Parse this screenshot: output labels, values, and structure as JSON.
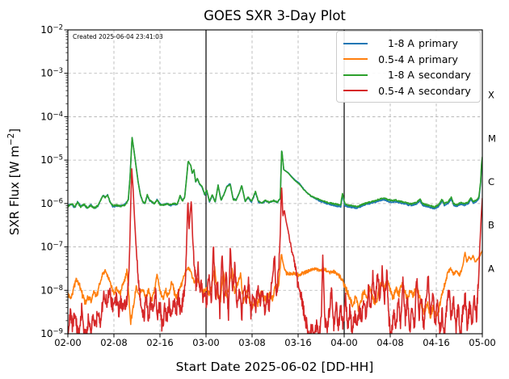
{
  "chart_data": {
    "type": "line",
    "title": "GOES SXR 3-Day Plot",
    "xlabel": "Start Date 2025-06-02 [DD-HH]",
    "ylabel_main": "SXR Flux [W m",
    "ylabel_sup": "−2",
    "ylabel_end": "]",
    "created_note": "Created 2025-06-04 23:41:03",
    "x_axis": {
      "unit": "hours since 2025-06-02 00:00",
      "range_hours": [
        0,
        72
      ],
      "tick_hours": [
        0,
        8,
        16,
        24,
        32,
        40,
        48,
        56,
        64,
        72
      ],
      "tick_labels": [
        "02-00",
        "02-08",
        "02-16",
        "03-00",
        "03-08",
        "03-16",
        "04-00",
        "04-08",
        "04-16",
        "05-00"
      ]
    },
    "y_axis": {
      "scale": "log10",
      "unit": "W m^-2",
      "range_log10": [
        -9,
        -2
      ],
      "tick_exponents": [
        -2,
        -3,
        -4,
        -5,
        -6,
        -7,
        -8,
        -9
      ]
    },
    "grid": {
      "on": true,
      "style": "dashed",
      "color": "#b0b0b0"
    },
    "day_boundary_hours": [
      24,
      48
    ],
    "flux_classes": [
      {
        "label": "X",
        "log10_center": -3.5
      },
      {
        "label": "M",
        "log10_center": -4.5
      },
      {
        "label": "C",
        "log10_center": -5.5
      },
      {
        "label": "B",
        "log10_center": -6.5
      },
      {
        "label": "A",
        "log10_center": -7.5
      }
    ],
    "legend": {
      "position": "upper right",
      "items": [
        {
          "channel": "1-8 A",
          "kind": "primary",
          "color": "#1f77b4"
        },
        {
          "channel": "0.5-4 A",
          "kind": "primary",
          "color": "#ff7f0e"
        },
        {
          "channel": "1-8 A",
          "kind": "secondary",
          "color": "#2ca02c"
        },
        {
          "channel": "0.5-4 A",
          "kind": "secondary",
          "color": "#d62728"
        }
      ]
    },
    "series": [
      {
        "name": "1-8 A primary",
        "color": "#1f77b4",
        "noise": {
          "amp": 0.05,
          "ceil": -5.3
        },
        "offsets_from_secondary": [
          0,
          0.03,
          1,
          -0.03,
          2,
          0.03,
          3,
          -0.02,
          4,
          0.02,
          5,
          -0.02,
          6,
          0.01,
          8,
          -0.02,
          10,
          0.02,
          11.15,
          0,
          12,
          0.01,
          14,
          -0.02,
          16,
          0.02,
          18,
          -0.02,
          20,
          0.01,
          21,
          0,
          24,
          -0.02,
          28,
          0.02,
          32,
          -0.02,
          37.15,
          0,
          40,
          0.02,
          44,
          -0.03,
          48,
          -0.04,
          52,
          -0.03,
          56,
          -0.04,
          60,
          -0.03,
          64,
          -0.04,
          68,
          -0.03,
          72,
          -0.04
        ]
      },
      {
        "name": "0.5-4 A primary",
        "color": "#ff7f0e",
        "noise": {
          "amp": 0.15,
          "ceil": -7.0
        },
        "anchors_t_log10flux": [
          0,
          -8.1,
          0.5,
          -8.25,
          1,
          -7.95,
          1.5,
          -7.75,
          2,
          -7.85,
          2.5,
          -8.1,
          3,
          -8.3,
          3.5,
          -8.15,
          4,
          -8.25,
          4.5,
          -8.05,
          5,
          -8.15,
          5.5,
          -7.85,
          6,
          -7.65,
          6.5,
          -7.55,
          7,
          -7.7,
          7.5,
          -7.9,
          8,
          -8.05,
          8.5,
          -7.95,
          9,
          -8.1,
          9.5,
          -7.9,
          10,
          -7.7,
          10.3,
          -7.52,
          10.9,
          -8.75,
          11.3,
          -8.45,
          11.9,
          -7.9,
          12.4,
          -8.1,
          13,
          -7.95,
          13.5,
          -8.2,
          14,
          -8.0,
          14.5,
          -8.25,
          15,
          -8.05,
          15.5,
          -7.62,
          16,
          -8.0,
          16.5,
          -8.2,
          17,
          -8.0,
          17.5,
          -8.15,
          18,
          -7.78,
          18.5,
          -8.05,
          19,
          -8.15,
          19.5,
          -7.95,
          20,
          -7.75,
          20.5,
          -7.55,
          21,
          -7.48,
          21.5,
          -7.65,
          22,
          -7.82,
          22.5,
          -7.75,
          23,
          -7.92,
          23.5,
          -8.05,
          24,
          -7.95,
          24.5,
          -8.1,
          25,
          -7.9,
          25.5,
          -7.48,
          26,
          -8.1,
          26.5,
          -8.25,
          27,
          -7.55,
          27.5,
          -8.2,
          28,
          -7.9,
          28.5,
          -7.5,
          29,
          -8.05,
          29.5,
          -7.85,
          30,
          -7.62,
          30.5,
          -8.3,
          31,
          -8.0,
          31.5,
          -8.2,
          32,
          -8.42,
          32.5,
          -8.2,
          33,
          -8.3,
          33.5,
          -8.05,
          34,
          -8.1,
          34.5,
          -8.25,
          35,
          -8.1,
          35.5,
          -8.2,
          36,
          -7.95,
          36.6,
          -7.9,
          37.1,
          -7.15,
          37.5,
          -7.45,
          38,
          -7.62,
          39,
          -7.6,
          40,
          -7.65,
          41,
          -7.6,
          42,
          -7.55,
          43,
          -7.5,
          43.5,
          -7.53,
          44,
          -7.56,
          44.5,
          -7.5,
          45,
          -7.55,
          45.5,
          -7.6,
          46,
          -7.55,
          46.5,
          -7.6,
          47,
          -7.65,
          47.5,
          -7.72,
          48,
          -7.88,
          48.6,
          -8.05,
          49,
          -8.2,
          49.5,
          -8.35,
          50,
          -8.15,
          50.5,
          -8.45,
          51,
          -8.2,
          51.5,
          -8.0,
          52,
          -8.15,
          52.5,
          -7.95,
          53,
          -8.2,
          53.5,
          -8.35,
          54,
          -8.0,
          54.5,
          -7.8,
          55,
          -7.95,
          55.5,
          -7.78,
          56,
          -8.0,
          56.5,
          -8.2,
          57,
          -7.95,
          57.5,
          -8.1,
          58,
          -7.85,
          58.5,
          -8.0,
          59,
          -8.2,
          59.5,
          -8.0,
          60,
          -8.15,
          60.5,
          -7.9,
          61,
          -8.1,
          61.5,
          -8.35,
          62,
          -8.55,
          62.5,
          -8.3,
          63,
          -8.6,
          63.5,
          -8.35,
          64,
          -8.65,
          64.5,
          -8.4,
          65,
          -8.1,
          65.5,
          -7.85,
          66,
          -7.6,
          66.5,
          -7.5,
          67,
          -7.62,
          67.5,
          -7.55,
          68,
          -7.65,
          68.5,
          -7.5,
          69,
          -7.12,
          69.3,
          -7.35,
          69.7,
          -7.22,
          70,
          -7.3,
          70.4,
          -7.2,
          70.8,
          -7.35,
          71.2,
          -7.28,
          71.6,
          -7.2,
          72,
          -7.08
        ]
      },
      {
        "name": "1-8 A secondary",
        "color": "#2ca02c",
        "noise": {
          "amp": 0.05,
          "ceil": -5.3
        },
        "anchors_t_log10flux": [
          0,
          -6.07,
          0.7,
          -6.0,
          1.2,
          -6.08,
          1.7,
          -5.97,
          2.2,
          -6.08,
          2.8,
          -6.02,
          3.4,
          -6.1,
          4,
          -6.05,
          4.6,
          -6.1,
          5.2,
          -6.05,
          5.6,
          -5.95,
          6.1,
          -5.82,
          6.5,
          -5.86,
          6.9,
          -5.8,
          7.3,
          -5.95,
          7.8,
          -6.05,
          8.5,
          -6.04,
          9.2,
          -6.06,
          10,
          -6.03,
          10.5,
          -5.92,
          10.8,
          -5.4,
          11.15,
          -4.47,
          11.5,
          -4.8,
          11.8,
          -5.1,
          12.2,
          -5.5,
          12.6,
          -5.8,
          13,
          -5.95,
          13.4,
          -6.0,
          13.8,
          -5.79,
          14.2,
          -5.92,
          14.6,
          -5.96,
          15,
          -6.0,
          15.5,
          -5.92,
          16,
          -6.02,
          16.6,
          -6.04,
          17.2,
          -6.0,
          17.8,
          -6.03,
          18.4,
          -6.0,
          19,
          -6.02,
          19.5,
          -5.82,
          19.9,
          -5.95,
          20.3,
          -5.85,
          20.6,
          -5.45,
          20.9,
          -5.02,
          21.15,
          -5.08,
          21.35,
          -5.12,
          21.6,
          -5.3,
          21.9,
          -5.22,
          22.2,
          -5.5,
          22.5,
          -5.42,
          22.9,
          -5.55,
          23.3,
          -5.6,
          23.8,
          -5.8,
          24.1,
          -5.68,
          24.6,
          -5.95,
          25.1,
          -5.8,
          25.6,
          -5.97,
          26.1,
          -5.58,
          26.6,
          -5.93,
          27.1,
          -5.8,
          27.6,
          -5.62,
          28.2,
          -5.56,
          28.7,
          -5.9,
          29.2,
          -5.93,
          29.8,
          -5.75,
          30.2,
          -5.58,
          30.8,
          -5.95,
          31.3,
          -5.85,
          31.9,
          -5.95,
          32.6,
          -5.72,
          33.1,
          -5.95,
          33.7,
          -5.98,
          34.3,
          -5.93,
          35,
          -5.97,
          35.7,
          -5.93,
          36.4,
          -5.97,
          36.9,
          -5.88,
          37.0,
          -5.4,
          37.15,
          -4.75,
          37.5,
          -5.22,
          38.3,
          -5.3,
          38.8,
          -5.38,
          39.5,
          -5.48,
          40.2,
          -5.55,
          41,
          -5.68,
          41.6,
          -5.76,
          42.3,
          -5.83,
          43,
          -5.87,
          43.7,
          -5.91,
          44.4,
          -5.94,
          45.2,
          -5.98,
          46,
          -6.0,
          46.8,
          -6.02,
          47.4,
          -6.03,
          47.7,
          -5.76,
          48.1,
          -6.0,
          48.7,
          -6.04,
          49.5,
          -6.05,
          50.3,
          -6.07,
          51.1,
          -6.02,
          51.9,
          -5.99,
          52.7,
          -5.96,
          53.5,
          -5.93,
          54.3,
          -5.89,
          54.9,
          -5.87,
          55.6,
          -5.91,
          56.3,
          -5.93,
          57,
          -5.92,
          57.7,
          -5.95,
          58.4,
          -5.97,
          59.1,
          -6.0,
          59.8,
          -6.01,
          60.5,
          -5.98,
          61.2,
          -5.9,
          61.6,
          -6.0,
          62.3,
          -6.03,
          63,
          -6.05,
          63.7,
          -6.08,
          64.4,
          -6.03,
          65,
          -5.9,
          65.4,
          -6.0,
          66,
          -5.97,
          66.6,
          -5.86,
          67,
          -6.0,
          67.6,
          -6.03,
          68.3,
          -5.98,
          68.9,
          -6.01,
          69.5,
          -5.97,
          70,
          -5.87,
          70.4,
          -5.95,
          70.9,
          -5.93,
          71.4,
          -5.85,
          71.7,
          -5.5,
          71.85,
          -5.1,
          72,
          -4.93
        ]
      },
      {
        "name": "0.5-4 A secondary",
        "color": "#d62728",
        "noise": {
          "amp": 0.32,
          "ceil": -6.6
        },
        "anchors_t_log10flux": [
          0,
          -8.95,
          0.4,
          -8.5,
          0.8,
          -8.85,
          1.2,
          -8.45,
          1.6,
          -8.9,
          2,
          -9.05,
          2.4,
          -8.35,
          2.8,
          -8.9,
          3.2,
          -9.1,
          3.6,
          -8.6,
          4,
          -8.95,
          4.4,
          -8.5,
          4.8,
          -8.9,
          5.2,
          -8.45,
          5.6,
          -8.8,
          6,
          -8.35,
          6.4,
          -8.05,
          6.8,
          -8.35,
          7.2,
          -7.95,
          7.6,
          -8.3,
          8,
          -8.45,
          8.4,
          -8.15,
          8.8,
          -8.5,
          9.2,
          -8.25,
          9.6,
          -8.45,
          10,
          -8.35,
          10.4,
          -8.1,
          10.7,
          -7.3,
          10.9,
          -6.1,
          11.1,
          -5.2,
          11.35,
          -5.7,
          11.6,
          -6.4,
          12,
          -7.3,
          12.4,
          -7.95,
          12.8,
          -8.4,
          13.2,
          -8.65,
          13.6,
          -8.1,
          14,
          -8.7,
          14.4,
          -8.25,
          14.8,
          -8.6,
          15.2,
          -8.05,
          15.6,
          -8.55,
          16,
          -8.3,
          16.4,
          -8.9,
          16.8,
          -8.45,
          17.2,
          -8.7,
          17.6,
          -8.3,
          18,
          -8.6,
          18.4,
          -8.2,
          18.8,
          -8.55,
          19.2,
          -8.1,
          19.6,
          -8.5,
          20,
          -8.2,
          20.4,
          -7.9,
          20.65,
          -6.8,
          20.85,
          -5.88,
          21.05,
          -6.6,
          21.25,
          -6.2,
          21.45,
          -5.92,
          21.7,
          -6.9,
          22,
          -7.5,
          22.3,
          -7.9,
          22.6,
          -7.4,
          22.9,
          -8.1,
          23.2,
          -7.85,
          23.5,
          -8.2,
          23.8,
          -7.95,
          24.1,
          -8.35,
          24.5,
          -7.6,
          24.9,
          -8.3,
          25.3,
          -6.95,
          25.6,
          -8.2,
          26,
          -7.8,
          26.4,
          -8.5,
          26.8,
          -7.05,
          27.1,
          -8.3,
          27.5,
          -7.5,
          27.9,
          -8.6,
          28.2,
          -7.0,
          28.6,
          -8.0,
          29,
          -7.45,
          29.4,
          -8.4,
          29.8,
          -7.9,
          30.2,
          -8.6,
          30.6,
          -7.9,
          31,
          -8.2,
          31.4,
          -7.8,
          31.8,
          -8.5,
          32.2,
          -8.05,
          32.6,
          -8.4,
          33,
          -7.95,
          33.4,
          -8.3,
          33.8,
          -8.0,
          34.2,
          -8.45,
          34.6,
          -8.1,
          35,
          -8.4,
          35.4,
          -7.8,
          35.9,
          -7.2,
          36.2,
          -8.1,
          36.6,
          -7.6,
          36.9,
          -6.7,
          37.05,
          -5.85,
          37.15,
          -5.62,
          37.35,
          -6.3,
          37.6,
          -6.15,
          37.9,
          -6.4,
          38.3,
          -6.65,
          38.7,
          -6.95,
          39.1,
          -7.25,
          39.5,
          -7.5,
          40,
          -7.85,
          40.5,
          -8.15,
          41,
          -8.5,
          41.5,
          -8.8,
          42,
          -9.1,
          42.4,
          -8.75,
          42.8,
          -9.15,
          43.2,
          -8.8,
          43.6,
          -9.05,
          44,
          -8.7,
          44.3,
          -7.18,
          44.6,
          -8.6,
          45,
          -9.0,
          45.4,
          -8.5,
          45.8,
          -7.95,
          46.2,
          -8.8,
          46.6,
          -8.3,
          47,
          -8.9,
          47.4,
          -8.4,
          47.8,
          -8.8,
          48.2,
          -8.1,
          48.6,
          -8.9,
          49,
          -8.4,
          49.4,
          -9.05,
          49.8,
          -8.5,
          50.2,
          -8.95,
          50.6,
          -8.35,
          51,
          -8.75,
          51.4,
          -8.2,
          51.8,
          -8.6,
          52.2,
          -7.95,
          52.6,
          -8.5,
          53,
          -7.6,
          53.4,
          -8.4,
          53.8,
          -7.5,
          54.2,
          -8.3,
          54.6,
          -7.55,
          55,
          -8.2,
          55.4,
          -7.6,
          55.8,
          -8.7,
          56.2,
          -9.1,
          56.6,
          -8.4,
          57,
          -8.9,
          57.4,
          -8.2,
          57.8,
          -8.8,
          58.2,
          -7.7,
          58.6,
          -8.7,
          59,
          -8.15,
          59.4,
          -8.9,
          59.8,
          -8.35,
          60.2,
          -8.8,
          60.6,
          -7.75,
          61,
          -8.6,
          61.4,
          -8.1,
          61.8,
          -8.9,
          62.2,
          -8.25,
          62.6,
          -7.7,
          63,
          -8.6,
          63.4,
          -8.05,
          63.8,
          -8.8,
          64.2,
          -8.3,
          64.6,
          -9.0,
          65,
          -8.5,
          65.4,
          -9.1,
          65.8,
          -8.4,
          66.2,
          -7.95,
          66.6,
          -8.7,
          67,
          -8.2,
          67.4,
          -8.9,
          67.8,
          -8.35,
          68.2,
          -9.05,
          68.6,
          -8.5,
          69,
          -8.1,
          69.4,
          -8.85,
          69.8,
          -8.3,
          70.2,
          -8.75,
          70.6,
          -8.2,
          71,
          -8.6,
          71.3,
          -7.8,
          71.6,
          -6.9,
          71.8,
          -6.3,
          72,
          -5.88
        ]
      }
    ]
  }
}
